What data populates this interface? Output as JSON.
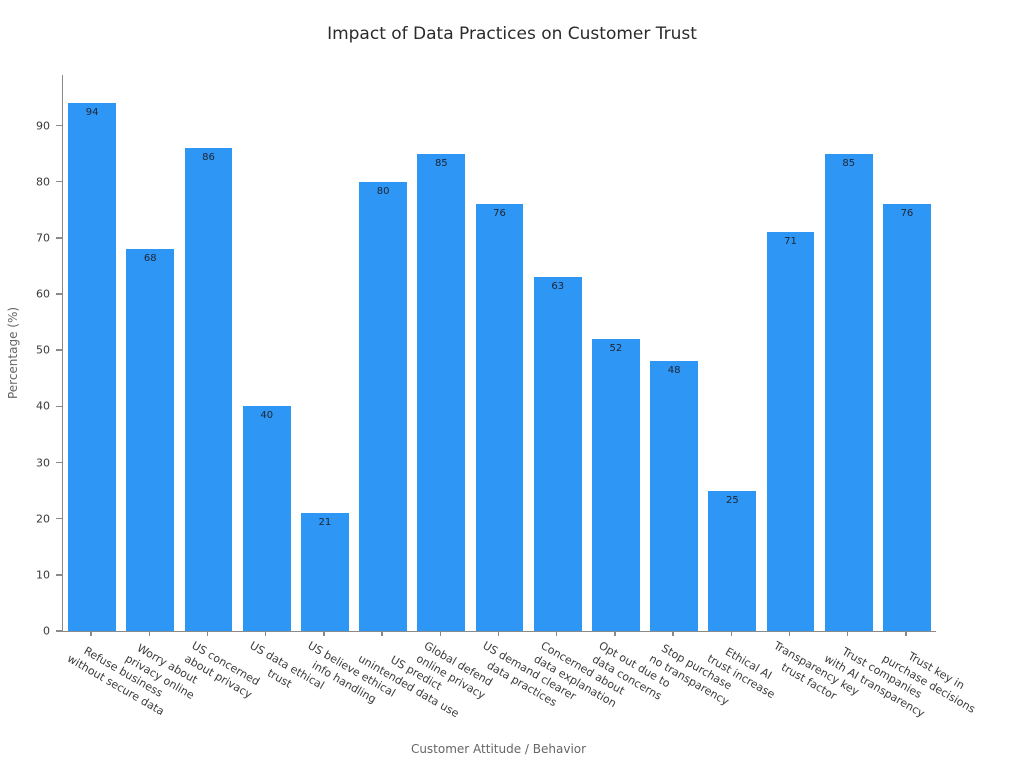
{
  "chart_data": {
    "type": "bar",
    "title": "Impact of Data Practices on Customer Trust",
    "xlabel": "Customer Attitude / Behavior",
    "ylabel": "Percentage (%)",
    "categories": [
      "Refuse business\nwithout secure data",
      "Worry about\nprivacy online",
      "US concerned\nabout privacy",
      "US data ethical\ntrust",
      "US believe ethical\ninfo handling",
      "US predict\nunintended data use",
      "Global defend\nonline privacy",
      "US demand clearer\ndata practices",
      "Concerned about\ndata explanation",
      "Opt out due to\ndata concerns",
      "Stop purchase\nno transparency",
      "Ethical AI\ntrust increase",
      "Transparency key\ntrust factor",
      "Trust companies\nwith AI transparency",
      "Trust key in\npurchase decisions"
    ],
    "values": [
      94,
      68,
      86,
      40,
      21,
      80,
      85,
      76,
      63,
      52,
      48,
      25,
      71,
      85,
      76
    ],
    "ylim": [
      0,
      99
    ],
    "yticks": [
      0,
      10,
      20,
      30,
      40,
      50,
      60,
      70,
      80,
      90
    ],
    "bar_color": "#2E96F5",
    "value_label_color": "#1f2430",
    "grid": false,
    "legend": "none",
    "value_labels": true
  }
}
